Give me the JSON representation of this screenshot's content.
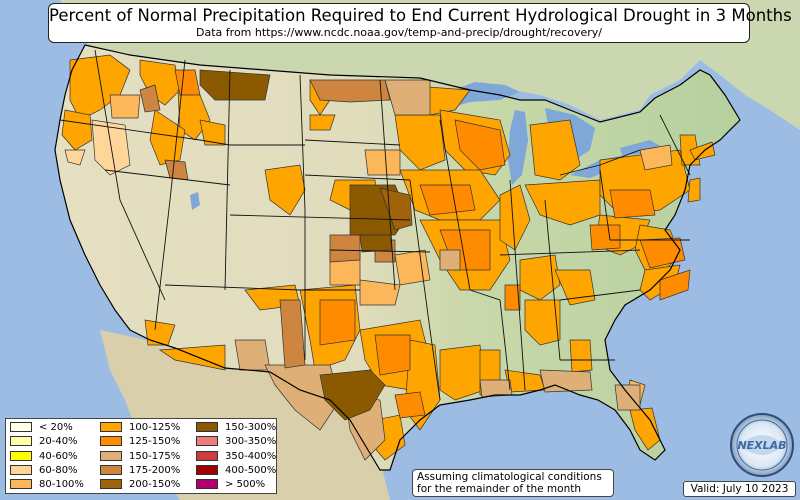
{
  "title": "Percent of Normal Precipitation Required to End Current Hydrological Drought in 3 Months",
  "subtitle": "Data from https://www.ncdc.noaa.gov/temp-and-precip/drought/recovery/",
  "legend": [
    {
      "label": "< 20%",
      "color": "#ffffe5"
    },
    {
      "label": "20-40%",
      "color": "#ffffa8"
    },
    {
      "label": "40-60%",
      "color": "#ffff00"
    },
    {
      "label": "60-80%",
      "color": "#fed69a"
    },
    {
      "label": "80-100%",
      "color": "#fdb75b"
    },
    {
      "label": "100-125%",
      "color": "#ffa500"
    },
    {
      "label": "125-150%",
      "color": "#ff8c00"
    },
    {
      "label": "150-175%",
      "color": "#deb078"
    },
    {
      "label": "175-200%",
      "color": "#cd853f"
    },
    {
      "label": "200-150%",
      "color": "#a0620a"
    },
    {
      "label": "150-300%",
      "color": "#8b5a00"
    },
    {
      "label": "300-350%",
      "color": "#f07b7b"
    },
    {
      "label": "350-400%",
      "color": "#cd3c3c"
    },
    {
      "label": "400-500%",
      "color": "#a00000"
    },
    {
      "label": "> 500%",
      "color": "#b4006e"
    }
  ],
  "note": {
    "line1": "Assuming climatological conditions",
    "line2": "for the remainder of the month"
  },
  "valid": "Valid: July 10 2023",
  "logo_text": "NEXLAB",
  "colors": {
    "ocean": "#9dbce4",
    "land_west": "#e3dcbe",
    "land_east": "#bcd3a3",
    "canada": "#c9d6ae",
    "lake": "#7fa7d8",
    "border": "#000000"
  }
}
